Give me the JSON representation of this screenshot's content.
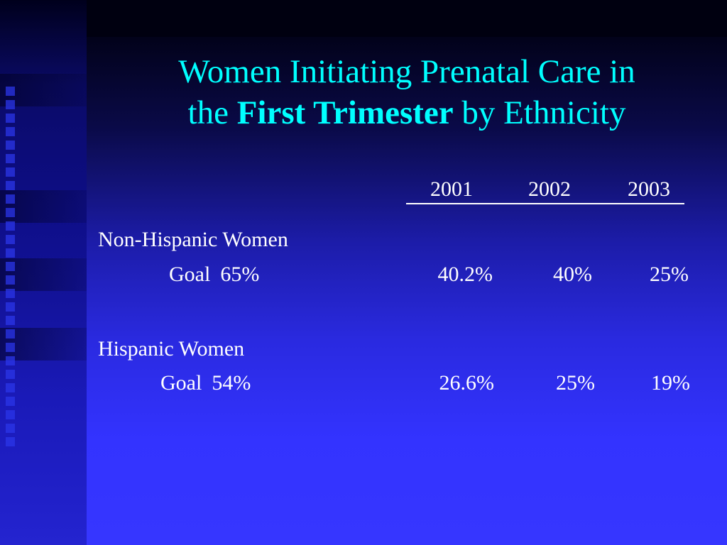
{
  "slide": {
    "title_line1": "Women Initiating Prenatal Care in",
    "title_line2_pre": "the",
    "title_line2_bold": "First Trimester",
    "title_line2_post": "by Ethnicity"
  },
  "table": {
    "years": [
      "2001",
      "2002",
      "2003"
    ],
    "groups": [
      {
        "label": "Non-Hispanic Women",
        "goal_label": "Goal",
        "goal_value": "65%",
        "values": [
          "40.2%",
          "40%",
          "25%"
        ]
      },
      {
        "label": "Hispanic Women",
        "goal_label": "Goal",
        "goal_value": "54%",
        "values": [
          "26.6%",
          "25%",
          "19%"
        ]
      }
    ]
  },
  "colors": {
    "title": "#00ffff",
    "text": "#ffffff",
    "background_top": "#000010",
    "background_bottom": "#3636ff"
  }
}
